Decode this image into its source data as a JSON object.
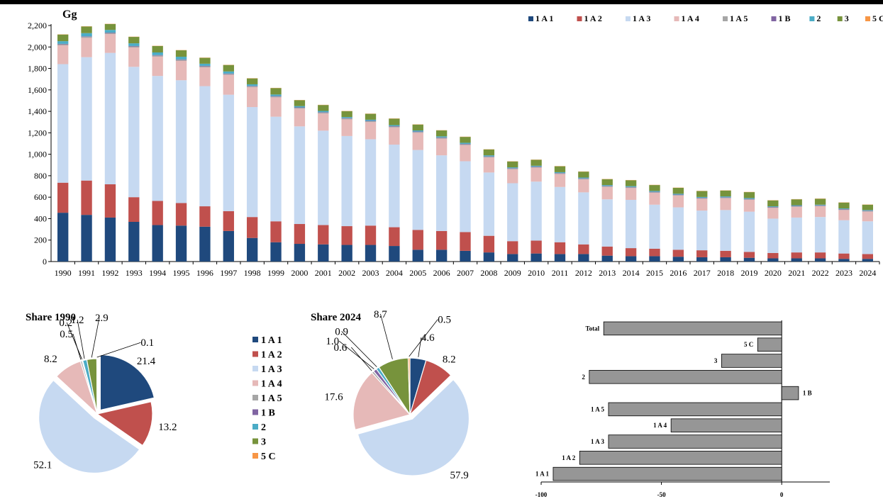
{
  "chart_data": [
    {
      "type": "bar",
      "stacked": true,
      "ylabel": "Gg",
      "ylim": [
        0,
        2200
      ],
      "yticks": [
        "0",
        "200",
        "400",
        "600",
        "800",
        "1,000",
        "1,200",
        "1,400",
        "1,600",
        "1,800",
        "2,000",
        "2,200"
      ],
      "legend_position": "top-right",
      "categories": [
        "1990",
        "1991",
        "1992",
        "1993",
        "1994",
        "1995",
        "1996",
        "1997",
        "1998",
        "1999",
        "2000",
        "2001",
        "2002",
        "2003",
        "2004",
        "2005",
        "2006",
        "2007",
        "2008",
        "2009",
        "2010",
        "2011",
        "2012",
        "2013",
        "2014",
        "2015",
        "2016",
        "2017",
        "2018",
        "2019",
        "2020",
        "2021",
        "2022",
        "2023",
        "2024"
      ],
      "series": [
        {
          "name": "1 A 1",
          "color": "#1f497d",
          "values": [
            455,
            435,
            410,
            370,
            340,
            335,
            325,
            285,
            220,
            180,
            165,
            160,
            155,
            155,
            145,
            110,
            110,
            100,
            85,
            70,
            75,
            70,
            70,
            55,
            50,
            50,
            45,
            40,
            40,
            35,
            30,
            30,
            30,
            25,
            25
          ]
        },
        {
          "name": "1 A 2",
          "color": "#c0504d",
          "values": [
            280,
            320,
            310,
            230,
            225,
            210,
            190,
            185,
            195,
            195,
            185,
            180,
            175,
            180,
            175,
            185,
            175,
            175,
            155,
            120,
            120,
            110,
            90,
            85,
            75,
            70,
            65,
            65,
            60,
            55,
            50,
            55,
            55,
            50,
            45
          ]
        },
        {
          "name": "1 A 3",
          "color": "#c6d9f1",
          "values": [
            1105,
            1150,
            1225,
            1215,
            1165,
            1145,
            1120,
            1085,
            1025,
            975,
            910,
            880,
            840,
            805,
            770,
            745,
            705,
            660,
            590,
            540,
            550,
            515,
            485,
            440,
            450,
            410,
            395,
            370,
            380,
            375,
            320,
            325,
            330,
            310,
            305
          ]
        },
        {
          "name": "1 A 4",
          "color": "#e6b9b8",
          "values": [
            175,
            180,
            175,
            180,
            180,
            180,
            175,
            185,
            185,
            180,
            165,
            160,
            155,
            160,
            160,
            160,
            155,
            150,
            140,
            130,
            130,
            120,
            120,
            115,
            110,
            110,
            110,
            110,
            110,
            110,
            100,
            100,
            100,
            95,
            90
          ]
        },
        {
          "name": "1 A 5",
          "color": "#a6a6a6",
          "values": [
            10,
            10,
            10,
            10,
            10,
            10,
            10,
            8,
            8,
            8,
            8,
            8,
            8,
            8,
            8,
            8,
            8,
            8,
            6,
            6,
            6,
            6,
            6,
            6,
            6,
            6,
            5,
            5,
            5,
            5,
            5,
            5,
            5,
            5,
            5
          ]
        },
        {
          "name": "1 B",
          "color": "#8064a2",
          "values": [
            4,
            4,
            4,
            4,
            4,
            4,
            4,
            4,
            4,
            4,
            4,
            4,
            4,
            4,
            4,
            4,
            4,
            4,
            4,
            4,
            4,
            4,
            4,
            4,
            4,
            4,
            4,
            4,
            4,
            4,
            4,
            4,
            4,
            4,
            4
          ]
        },
        {
          "name": "2",
          "color": "#4bacc6",
          "values": [
            25,
            30,
            25,
            25,
            25,
            25,
            20,
            20,
            15,
            15,
            12,
            12,
            10,
            10,
            10,
            10,
            10,
            10,
            10,
            8,
            8,
            8,
            8,
            8,
            8,
            8,
            8,
            8,
            8,
            8,
            6,
            6,
            6,
            6,
            6
          ]
        },
        {
          "name": "3",
          "color": "#77933c",
          "values": [
            62,
            62,
            55,
            60,
            60,
            60,
            55,
            60,
            55,
            60,
            55,
            55,
            55,
            55,
            60,
            55,
            55,
            55,
            55,
            55,
            55,
            55,
            55,
            55,
            55,
            55,
            55,
            55,
            55,
            55,
            55,
            55,
            55,
            55,
            50
          ]
        },
        {
          "name": "5 C",
          "color": "#f79646",
          "values": [
            2,
            2,
            2,
            2,
            2,
            2,
            2,
            2,
            2,
            2,
            2,
            2,
            2,
            2,
            2,
            2,
            2,
            2,
            2,
            2,
            2,
            2,
            2,
            2,
            2,
            2,
            2,
            2,
            2,
            2,
            2,
            2,
            2,
            2,
            2
          ]
        }
      ]
    },
    {
      "type": "pie",
      "title": "Share 1990",
      "slices": [
        {
          "name": "1 A 1",
          "value": 21.4,
          "color": "#1f497d",
          "label": "21.4",
          "explode": true
        },
        {
          "name": "1 A 2",
          "value": 13.2,
          "color": "#c0504d",
          "label": "13.2",
          "explode": false
        },
        {
          "name": "1 A 3",
          "value": 52.1,
          "color": "#c6d9f1",
          "label": "52.1",
          "explode": true
        },
        {
          "name": "1 A 4",
          "value": 8.2,
          "color": "#e6b9b8",
          "label": "8.2",
          "explode": false
        },
        {
          "name": "1 A 5",
          "value": 0.5,
          "color": "#a6a6a6",
          "label": "0.5",
          "explode": false
        },
        {
          "name": "1 B",
          "value": 0.2,
          "color": "#8064a2",
          "label": "0.2",
          "explode": false
        },
        {
          "name": "2",
          "value": 1.2,
          "color": "#4bacc6",
          "label": "1.2",
          "explode": false
        },
        {
          "name": "3",
          "value": 2.9,
          "color": "#77933c",
          "label": "2.9",
          "explode": false
        },
        {
          "name": "5 C",
          "value": 0.1,
          "color": "#f79646",
          "label": "0.1",
          "explode": false
        }
      ]
    },
    {
      "type": "pie",
      "title": "Share 2024",
      "slices": [
        {
          "name": "1 A 1",
          "value": 4.6,
          "color": "#1f497d",
          "label": "4.6",
          "explode": false
        },
        {
          "name": "1 A 2",
          "value": 8.2,
          "color": "#c0504d",
          "label": "8.2",
          "explode": false
        },
        {
          "name": "1 A 3",
          "value": 57.9,
          "color": "#c6d9f1",
          "label": "57.9",
          "explode": true
        },
        {
          "name": "1 A 4",
          "value": 17.6,
          "color": "#e6b9b8",
          "label": "17.6",
          "explode": false
        },
        {
          "name": "1 A 5",
          "value": 0.6,
          "color": "#a6a6a6",
          "label": "0.6",
          "explode": false
        },
        {
          "name": "1 B",
          "value": 1.0,
          "color": "#8064a2",
          "label": "1.0",
          "explode": false
        },
        {
          "name": "2",
          "value": 0.9,
          "color": "#4bacc6",
          "label": "0.9",
          "explode": false
        },
        {
          "name": "3",
          "value": 8.7,
          "color": "#77933c",
          "label": "8.7",
          "explode": false
        },
        {
          "name": "5 C",
          "value": 0.5,
          "color": "#f79646",
          "label": "0.5",
          "explode": false
        }
      ]
    },
    {
      "type": "bar",
      "orientation": "horizontal",
      "xlim": [
        -100,
        20
      ],
      "xticks": [
        "-100",
        "-50",
        "0"
      ],
      "categories": [
        "Total",
        "5 C",
        "3",
        "2",
        "1 B",
        "1 A 5",
        "1 A 4",
        "1 A 3",
        "1 A 2",
        "1 A 1"
      ],
      "values": [
        -74,
        -10,
        -25,
        -80,
        7,
        -72,
        -46,
        -72,
        -84,
        -95
      ],
      "color": "#969696"
    }
  ],
  "pie_legend": [
    {
      "name": "1 A 1",
      "color": "#1f497d"
    },
    {
      "name": "1 A 2",
      "color": "#c0504d"
    },
    {
      "name": "1 A 3",
      "color": "#c6d9f1"
    },
    {
      "name": "1 A 4",
      "color": "#e6b9b8"
    },
    {
      "name": "1 A 5",
      "color": "#a6a6a6"
    },
    {
      "name": "1 B",
      "color": "#8064a2"
    },
    {
      "name": "2",
      "color": "#4bacc6"
    },
    {
      "name": "3",
      "color": "#77933c"
    },
    {
      "name": "5 C",
      "color": "#f79646"
    }
  ]
}
